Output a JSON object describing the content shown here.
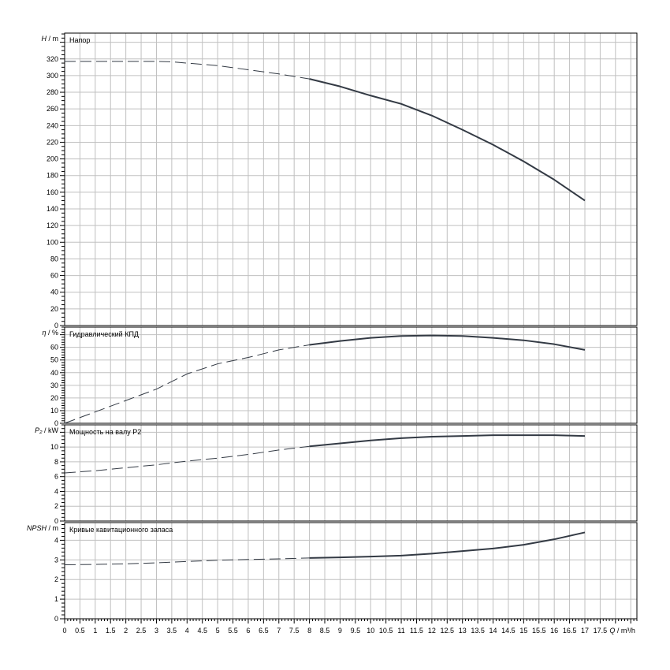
{
  "chart_data": [
    {
      "type": "line",
      "title": "Напор",
      "ylabel_symbol": "H",
      "ylabel_unit": " / m",
      "ylim": [
        0,
        351
      ],
      "ytick_step": 20,
      "yminor_step": 5,
      "x": [
        0,
        1,
        2,
        3,
        3.5,
        4,
        5,
        6,
        7,
        8,
        9,
        10,
        11,
        12,
        13,
        14,
        15,
        16,
        17
      ],
      "values": [
        317,
        317,
        317,
        317,
        316.5,
        315,
        312,
        307,
        302,
        296,
        287,
        276,
        266,
        252,
        235,
        217,
        197,
        175,
        150
      ],
      "solid_from_x": 8
    },
    {
      "type": "line",
      "title": "Гидравлический КПД",
      "ylabel_symbol": "η",
      "ylabel_unit": " / %",
      "ylim": [
        0,
        76
      ],
      "ytick_step": 10,
      "yminor_step": 2,
      "x": [
        0,
        1,
        2,
        3,
        4,
        5,
        6,
        7,
        8,
        9,
        10,
        11,
        12,
        13,
        14,
        15,
        16,
        17
      ],
      "values": [
        0,
        9,
        18,
        27,
        39,
        47,
        52,
        58,
        62,
        65,
        67.5,
        69,
        69.4,
        69,
        67.5,
        65.6,
        62.5,
        58
      ],
      "solid_from_x": 8
    },
    {
      "type": "line",
      "title": "Мощность на валу P2",
      "ylabel_symbol": "P₂",
      "ylabel_unit": " / kW",
      "ylim": [
        0,
        13
      ],
      "ytick_step": 2,
      "yminor_step": 0.5,
      "x": [
        0,
        1,
        2,
        3,
        4,
        5,
        6,
        7,
        8,
        9,
        10,
        11,
        12,
        13,
        14,
        15,
        16,
        17
      ],
      "values": [
        6.5,
        6.8,
        7.2,
        7.6,
        8.1,
        8.5,
        9.0,
        9.6,
        10.1,
        10.5,
        10.9,
        11.2,
        11.4,
        11.5,
        11.6,
        11.6,
        11.6,
        11.5
      ],
      "solid_from_x": 8
    },
    {
      "type": "line",
      "title": "Кривые кавитационного запаса",
      "ylabel_symbol": "NPSH",
      "ylabel_unit": " / m",
      "ylim": [
        0,
        4.9
      ],
      "ytick_step": 1,
      "yminor_step": 0.2,
      "x": [
        0,
        1,
        2,
        3,
        4,
        5,
        6,
        7,
        8,
        9,
        10,
        11,
        12,
        13,
        14,
        15,
        16,
        17
      ],
      "values": [
        2.75,
        2.77,
        2.8,
        2.85,
        2.92,
        2.98,
        3.02,
        3.05,
        3.1,
        3.13,
        3.17,
        3.22,
        3.32,
        3.45,
        3.58,
        3.77,
        4.05,
        4.4
      ],
      "solid_from_x": 8
    }
  ],
  "x_axis": {
    "label_symbol": "Q",
    "label_unit": " / m³/h",
    "xlim": [
      0,
      18.7
    ],
    "tick_step": 0.5,
    "minor_step": 0.1,
    "tick_labels": [
      "0",
      "0.5",
      "1",
      "1.5",
      "2",
      "2.5",
      "3",
      "3.5",
      "4",
      "4.5",
      "5",
      "5.5",
      "6",
      "6.5",
      "7",
      "7.5",
      "8",
      "8.5",
      "9",
      "9.5",
      "10",
      "10.5",
      "11",
      "11.5",
      "12",
      "12.5",
      "13",
      "13.5",
      "14",
      "14.5",
      "15",
      "15.5",
      "16",
      "16.5",
      "17",
      "17.5"
    ]
  },
  "colors": {
    "grid": "#c0c0c0",
    "curve": "#333a44",
    "axis": "#000000"
  }
}
